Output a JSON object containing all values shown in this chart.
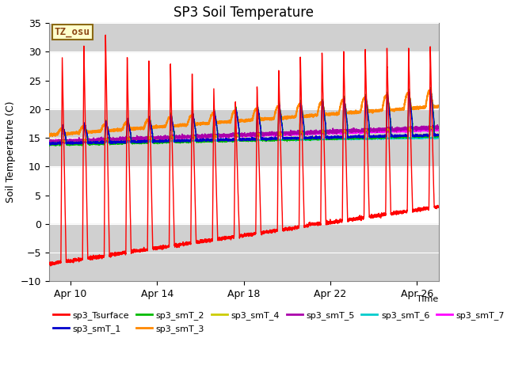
{
  "title": "SP3 Soil Temperature",
  "ylabel": "Soil Temperature (C)",
  "xlabel": "Time",
  "ylim": [
    -10,
    35
  ],
  "yticks": [
    -10,
    -5,
    0,
    5,
    10,
    15,
    20,
    25,
    30,
    35
  ],
  "xtick_labels": [
    "Apr 10",
    "Apr 14",
    "Apr 18",
    "Apr 22",
    "Apr 26"
  ],
  "annotation_text": "TZ_osu",
  "annotation_color": "#8B4513",
  "annotation_bg": "#FFFFCC",
  "series_colors": {
    "sp3_Tsurface": "#FF0000",
    "sp3_smT_1": "#0000CC",
    "sp3_smT_2": "#00BB00",
    "sp3_smT_3": "#FF8800",
    "sp3_smT_4": "#CCCC00",
    "sp3_smT_5": "#AA00AA",
    "sp3_smT_6": "#00CCCC",
    "sp3_smT_7": "#FF00FF"
  },
  "legend_order": [
    "sp3_Tsurface",
    "sp3_smT_1",
    "sp3_smT_2",
    "sp3_smT_3",
    "sp3_smT_4",
    "sp3_smT_5",
    "sp3_smT_6",
    "sp3_smT_7"
  ],
  "plot_bg": "#E8E8E8",
  "white_bands": [
    {
      "ymin": 0,
      "ymax": 10
    },
    {
      "ymin": 20,
      "ymax": 30
    }
  ],
  "gray_bands": [
    {
      "ymin": -10,
      "ymax": 0
    },
    {
      "ymin": 10,
      "ymax": 20
    },
    {
      "ymin": 30,
      "ymax": 35
    }
  ],
  "n_days": 18,
  "ppd": 240,
  "figsize": [
    6.4,
    4.8
  ],
  "dpi": 100
}
